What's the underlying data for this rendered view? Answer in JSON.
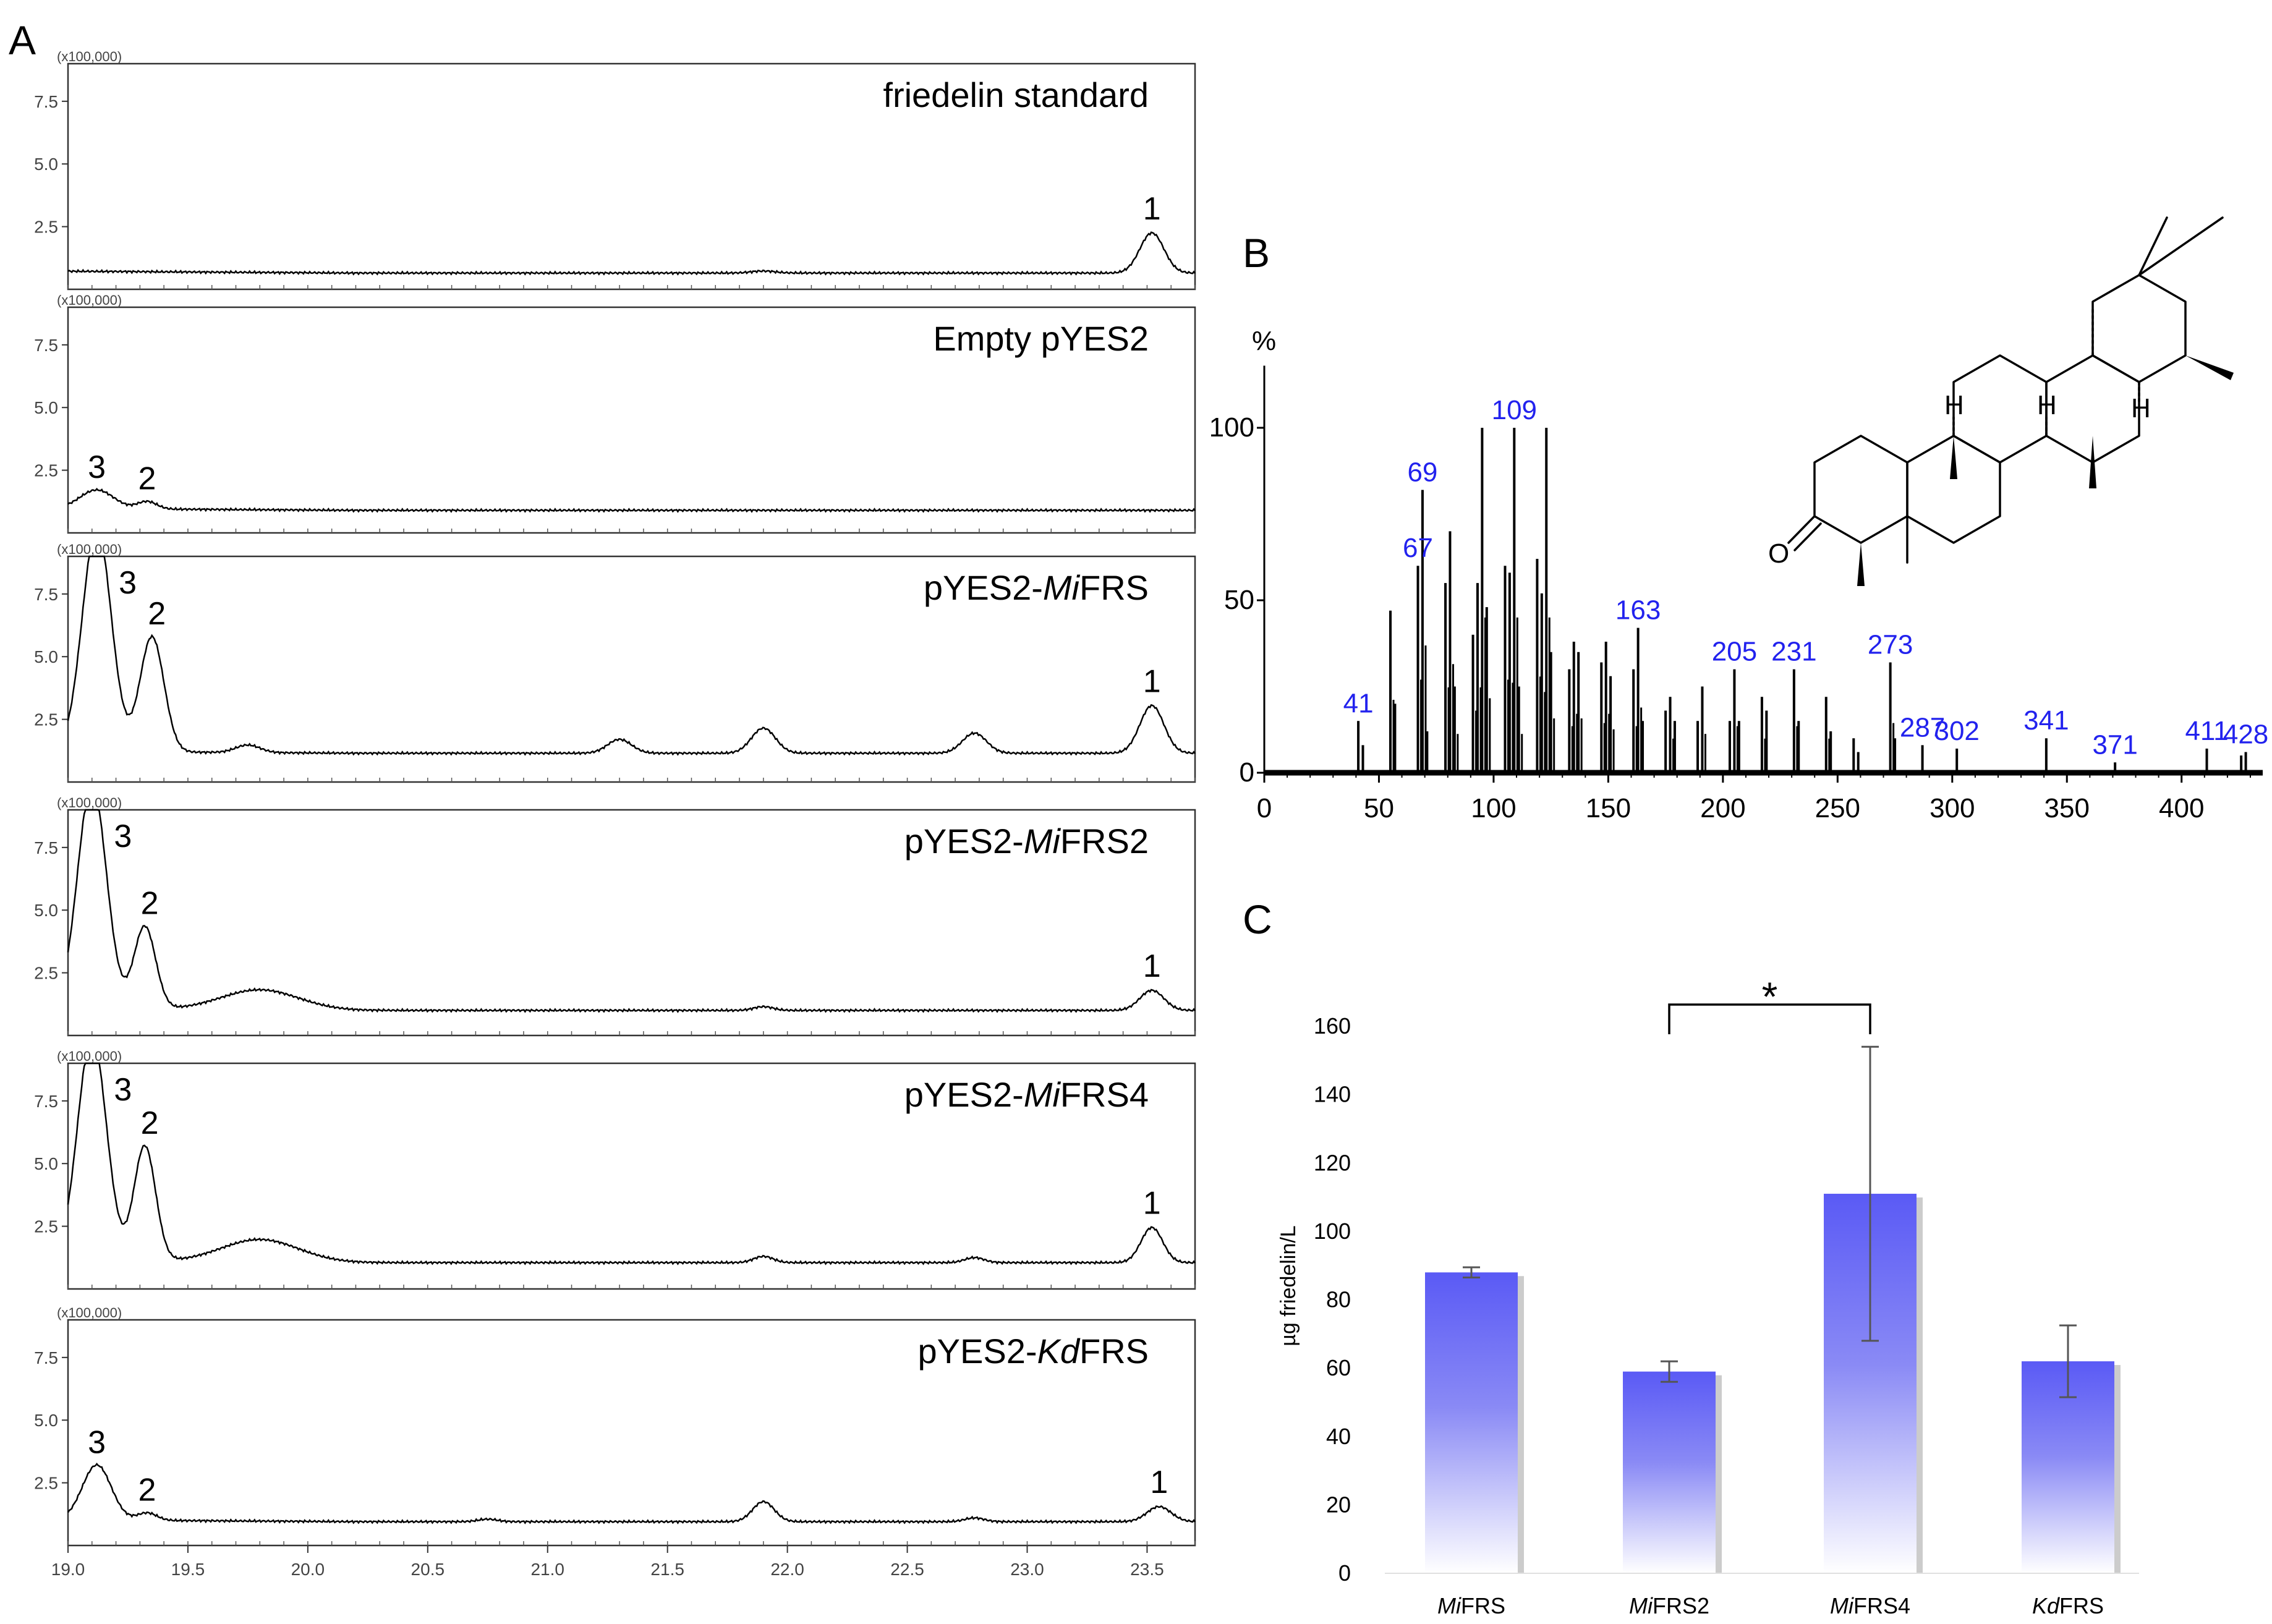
{
  "panel_labels": {
    "a": "A",
    "b": "B",
    "c": "C"
  },
  "chart_data": [
    {
      "type": "line",
      "panel": "A",
      "x_range": [
        19.0,
        23.7
      ],
      "x_ticks": [
        "19.0",
        "19.5",
        "20.0",
        "20.5",
        "21.0",
        "21.5",
        "22.0",
        "22.5",
        "23.0",
        "23.5"
      ],
      "y_range": [
        0,
        900000
      ],
      "y_ticks": [
        "2.5",
        "5.0",
        "7.5"
      ],
      "y_scale_label": "(x100,000)",
      "traces": [
        {
          "title": "friedelin standard",
          "title_prefix": "friedelin standard",
          "title_italic": "",
          "title_suffix": "",
          "baseline": 0.65,
          "peaks": [
            {
              "rt": 23.52,
              "height": 1.6,
              "width": 0.05,
              "label": "1"
            },
            {
              "rt": 21.9,
              "height": 0.08,
              "width": 0.05,
              "label": ""
            }
          ]
        },
        {
          "title": "Empty pYES2",
          "title_prefix": "Empty pYES2",
          "title_italic": "",
          "title_suffix": "",
          "baseline": 0.9,
          "peaks": [
            {
              "rt": 19.12,
              "height": 0.75,
              "width": 0.07,
              "label": "3"
            },
            {
              "rt": 19.33,
              "height": 0.3,
              "width": 0.04,
              "label": "2"
            }
          ]
        },
        {
          "title": "pYES2-MiFRS",
          "title_prefix": "pYES2-",
          "title_italic": "Mi",
          "title_suffix": "FRS",
          "baseline": 1.15,
          "peaks": [
            {
              "rt": 19.12,
              "height": 9.0,
              "width": 0.06,
              "label": "3"
            },
            {
              "rt": 19.35,
              "height": 4.6,
              "width": 0.05,
              "label": "2"
            },
            {
              "rt": 19.75,
              "height": 0.3,
              "width": 0.05,
              "label": ""
            },
            {
              "rt": 21.3,
              "height": 0.55,
              "width": 0.05,
              "label": ""
            },
            {
              "rt": 21.9,
              "height": 1.0,
              "width": 0.05,
              "label": ""
            },
            {
              "rt": 22.78,
              "height": 0.8,
              "width": 0.05,
              "label": ""
            },
            {
              "rt": 23.52,
              "height": 1.9,
              "width": 0.05,
              "label": "1"
            }
          ]
        },
        {
          "title": "pYES2-MiFRS2",
          "title_prefix": "pYES2-",
          "title_italic": "Mi",
          "title_suffix": "FRS2",
          "baseline": 1.0,
          "peaks": [
            {
              "rt": 19.1,
              "height": 9.0,
              "width": 0.06,
              "label": "3"
            },
            {
              "rt": 19.32,
              "height": 3.3,
              "width": 0.045,
              "label": "2"
            },
            {
              "rt": 19.8,
              "height": 0.8,
              "width": 0.16,
              "label": ""
            },
            {
              "rt": 21.9,
              "height": 0.15,
              "width": 0.04,
              "label": ""
            },
            {
              "rt": 23.52,
              "height": 0.8,
              "width": 0.05,
              "label": "1"
            }
          ]
        },
        {
          "title": "pYES2-MiFRS4",
          "title_prefix": "pYES2-",
          "title_italic": "Mi",
          "title_suffix": "FRS4",
          "baseline": 1.05,
          "peaks": [
            {
              "rt": 19.1,
              "height": 9.0,
              "width": 0.06,
              "label": "3"
            },
            {
              "rt": 19.32,
              "height": 4.6,
              "width": 0.045,
              "label": "2"
            },
            {
              "rt": 19.8,
              "height": 0.9,
              "width": 0.16,
              "label": ""
            },
            {
              "rt": 21.9,
              "height": 0.25,
              "width": 0.04,
              "label": ""
            },
            {
              "rt": 22.78,
              "height": 0.2,
              "width": 0.04,
              "label": ""
            },
            {
              "rt": 23.52,
              "height": 1.4,
              "width": 0.045,
              "label": "1"
            }
          ]
        },
        {
          "title": "pYES2-KdFRS",
          "title_prefix": "pYES2-",
          "title_italic": "Kd",
          "title_suffix": "FRS",
          "baseline": 0.95,
          "peaks": [
            {
              "rt": 19.12,
              "height": 2.2,
              "width": 0.06,
              "label": "3"
            },
            {
              "rt": 19.33,
              "height": 0.3,
              "width": 0.04,
              "label": "2"
            },
            {
              "rt": 20.75,
              "height": 0.1,
              "width": 0.04,
              "label": ""
            },
            {
              "rt": 21.9,
              "height": 0.8,
              "width": 0.045,
              "label": ""
            },
            {
              "rt": 22.78,
              "height": 0.15,
              "width": 0.04,
              "label": ""
            },
            {
              "rt": 23.55,
              "height": 0.6,
              "width": 0.05,
              "label": "1"
            }
          ]
        }
      ]
    },
    {
      "type": "bar",
      "panel": "B",
      "subtype": "mass-spectrum",
      "xlim": [
        0,
        430
      ],
      "ylim": [
        0,
        118
      ],
      "ylabel": "%",
      "x_ticks": [
        "0",
        "50",
        "100",
        "150",
        "200",
        "250",
        "300",
        "350",
        "400"
      ],
      "y_ticks": [
        "0",
        "50",
        "100"
      ],
      "peaks": [
        [
          41,
          15
        ],
        [
          43,
          8
        ],
        [
          55,
          47
        ],
        [
          57,
          20
        ],
        [
          67,
          60
        ],
        [
          69,
          82
        ],
        [
          71,
          12
        ],
        [
          79,
          55
        ],
        [
          81,
          70
        ],
        [
          83,
          25
        ],
        [
          91,
          40
        ],
        [
          93,
          55
        ],
        [
          95,
          100
        ],
        [
          97,
          48
        ],
        [
          105,
          60
        ],
        [
          107,
          58
        ],
        [
          109,
          100
        ],
        [
          111,
          25
        ],
        [
          119,
          62
        ],
        [
          121,
          52
        ],
        [
          123,
          100
        ],
        [
          125,
          35
        ],
        [
          133,
          30
        ],
        [
          135,
          38
        ],
        [
          137,
          35
        ],
        [
          147,
          32
        ],
        [
          149,
          38
        ],
        [
          151,
          28
        ],
        [
          161,
          30
        ],
        [
          163,
          42
        ],
        [
          165,
          15
        ],
        [
          175,
          18
        ],
        [
          177,
          22
        ],
        [
          179,
          15
        ],
        [
          189,
          15
        ],
        [
          191,
          25
        ],
        [
          203,
          15
        ],
        [
          205,
          30
        ],
        [
          207,
          15
        ],
        [
          217,
          22
        ],
        [
          219,
          18
        ],
        [
          231,
          30
        ],
        [
          233,
          15
        ],
        [
          245,
          22
        ],
        [
          247,
          12
        ],
        [
          257,
          10
        ],
        [
          259,
          6
        ],
        [
          273,
          32
        ],
        [
          275,
          10
        ],
        [
          287,
          8
        ],
        [
          302,
          7
        ],
        [
          341,
          10
        ],
        [
          371,
          3
        ],
        [
          411,
          7
        ],
        [
          426,
          5
        ],
        [
          428,
          6
        ]
      ],
      "annotations": [
        {
          "mz": "41",
          "x": 41
        },
        {
          "mz": "67",
          "x": 67
        },
        {
          "mz": "69",
          "x": 69
        },
        {
          "mz": "109",
          "x": 109
        },
        {
          "mz": "163",
          "x": 163
        },
        {
          "mz": "205",
          "x": 205
        },
        {
          "mz": "231",
          "x": 231
        },
        {
          "mz": "273",
          "x": 273
        },
        {
          "mz": "287",
          "x": 287
        },
        {
          "mz": "302",
          "x": 302
        },
        {
          "mz": "341",
          "x": 341
        },
        {
          "mz": "371",
          "x": 371
        },
        {
          "mz": "411",
          "x": 411
        },
        {
          "mz": "428",
          "x": 428
        }
      ],
      "structure_labels": {
        "oxygen": "O",
        "h1": "H",
        "h2": "H",
        "h3": "H"
      }
    },
    {
      "type": "bar",
      "panel": "C",
      "categories": [
        {
          "italic": "Mi",
          "rest": "FRS"
        },
        {
          "italic": "Mi",
          "rest": "FRS2"
        },
        {
          "italic": "Mi",
          "rest": "FRS4"
        },
        {
          "italic": "Kd",
          "rest": "FRS"
        }
      ],
      "values": [
        88,
        59,
        111,
        62
      ],
      "errors": [
        1.5,
        3,
        43,
        10.5
      ],
      "ylabel": "µg friedelin/L",
      "ylim": [
        0,
        160
      ],
      "y_ticks": [
        "0",
        "20",
        "40",
        "60",
        "80",
        "100",
        "120",
        "140",
        "160"
      ],
      "significance": {
        "from": 1,
        "to": 2,
        "label": "*"
      },
      "colors": {
        "bar_top": "#5a5af5",
        "bar_bottom": "#ffffff",
        "shadow": "#9a9a9a",
        "error": "#555555"
      }
    }
  ]
}
